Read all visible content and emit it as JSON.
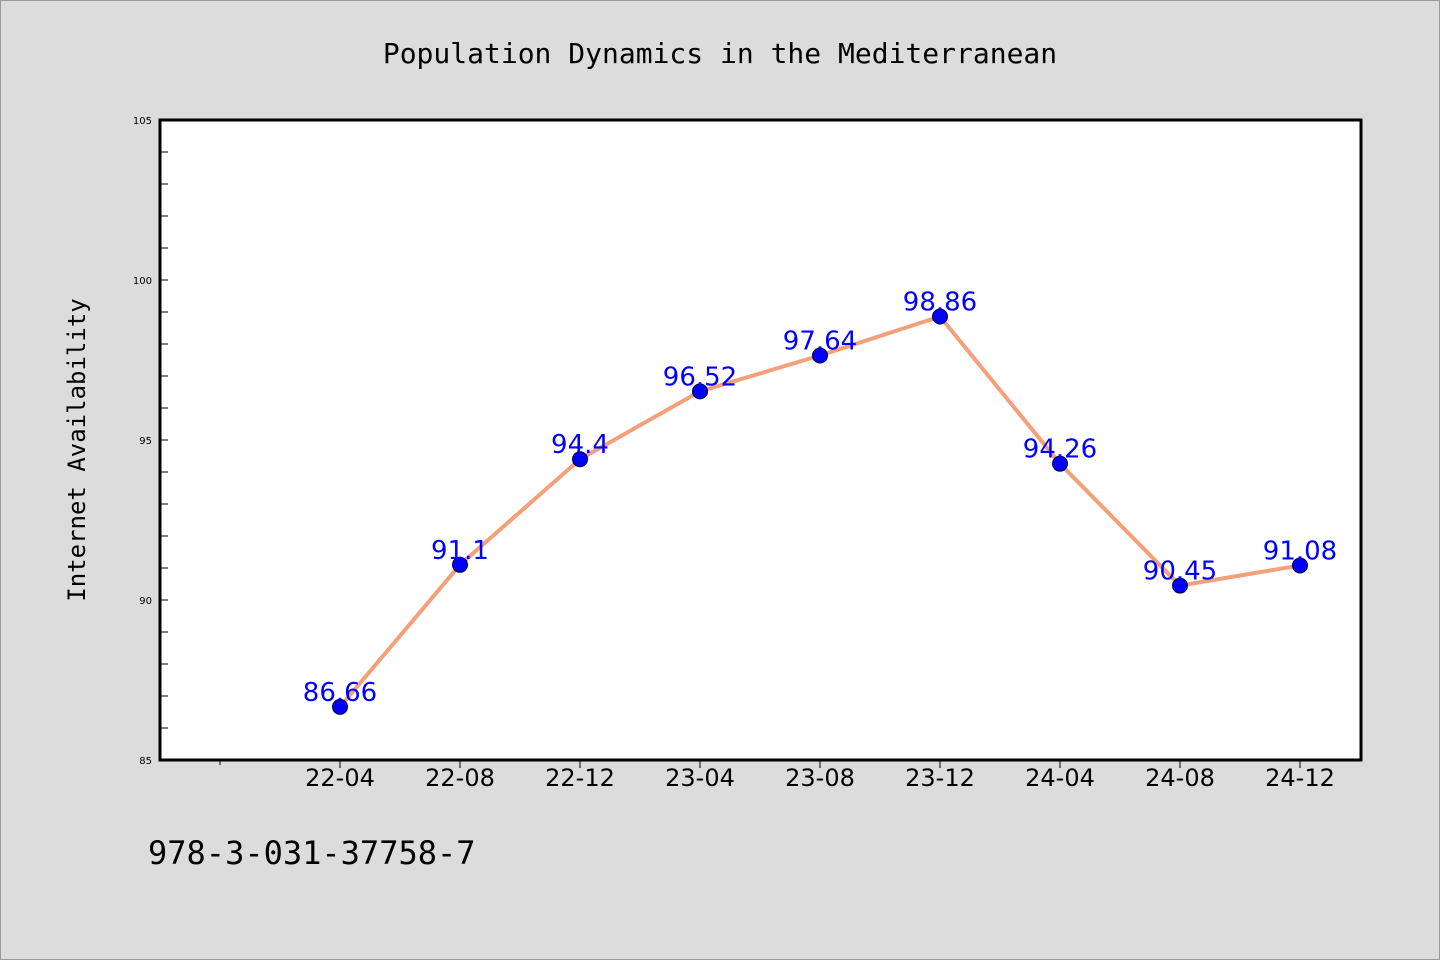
{
  "chart_data": {
    "type": "line",
    "title": "Population Dynamics in the Mediterranean",
    "xlabel": "",
    "ylabel": "Internet Availability",
    "categories": [
      "22-04",
      "22-08",
      "22-12",
      "23-04",
      "23-08",
      "23-12",
      "24-04",
      "24-08",
      "24-12"
    ],
    "series": [
      {
        "values": [
          86.66,
          91.1,
          94.4,
          96.52,
          97.64,
          98.86,
          94.26,
          90.45,
          91.08
        ],
        "labels": [
          "86.66",
          "91.1",
          "94.4",
          "96.52",
          "97.64",
          "98.86",
          "94.26",
          "90.45",
          "91.08"
        ],
        "line_color": "#f4a07a",
        "marker_color": "#0000ff"
      }
    ],
    "ylim": [
      85,
      105
    ],
    "yticks": [
      85,
      90,
      95,
      100,
      105
    ],
    "grid": false,
    "legend": "none"
  },
  "footnote": "978-3-031-37758-7",
  "colors": {
    "background": "#dcdcdc",
    "plot_background": "#ffffff",
    "data_label": "#0000ff"
  }
}
